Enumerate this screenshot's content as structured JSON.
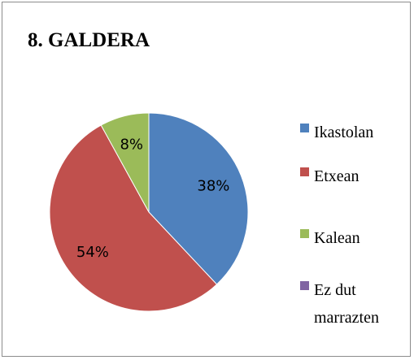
{
  "chart_data": {
    "type": "pie",
    "title": "8. GALDERA",
    "categories": [
      "Ikastolan",
      "Etxean",
      "Kalean",
      "Ez dut marrazten"
    ],
    "values": [
      38,
      54,
      8,
      0
    ],
    "value_labels": [
      "38%",
      "54%",
      "8%",
      null
    ],
    "colors": [
      "#4f81bd",
      "#c0504d",
      "#9bbb59",
      "#8064a2"
    ],
    "legend": "right"
  }
}
